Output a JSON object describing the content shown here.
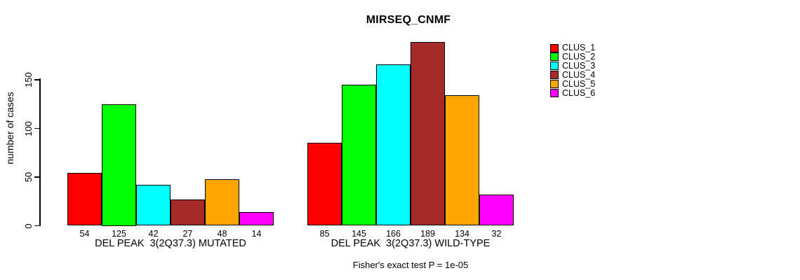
{
  "chart_data": {
    "type": "bar",
    "title": "MIRSEQ_CNMF",
    "ylabel": "number of cases",
    "yticks": [
      0,
      50,
      100,
      150
    ],
    "ylim": [
      0,
      195
    ],
    "grid": false,
    "legend_position": "top-right",
    "series_labels": [
      "CLUS_1",
      "CLUS_2",
      "CLUS_3",
      "CLUS_4",
      "CLUS_5",
      "CLUS_6"
    ],
    "series_colors": [
      "#FF0000",
      "#00FF00",
      "#00FFFF",
      "#A52A2A",
      "#FFA500",
      "#FF00FF"
    ],
    "groups": [
      {
        "label": "DEL PEAK  3(2Q37.3) MUTATED",
        "values": [
          54,
          125,
          42,
          27,
          48,
          14
        ]
      },
      {
        "label": "DEL PEAK  3(2Q37.3) WILD-TYPE",
        "values": [
          85,
          145,
          166,
          189,
          134,
          32
        ]
      }
    ],
    "bar_value_labels_shown": true,
    "annotation": "Fisher's exact test P = 1e-05"
  }
}
